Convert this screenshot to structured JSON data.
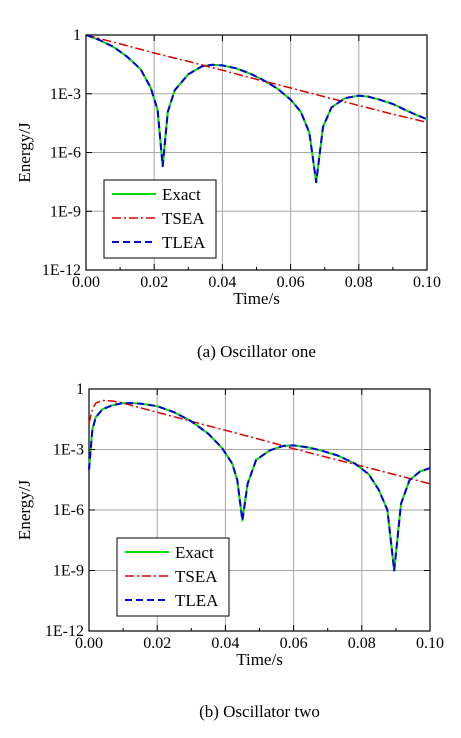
{
  "chart_data": [
    {
      "type": "line",
      "caption": "(a) Oscillator one",
      "xlabel": "Time/s",
      "ylabel": "Energy/J",
      "xlim": [
        0,
        0.1
      ],
      "ylim": [
        1e-12,
        1
      ],
      "yscale": "log",
      "grid": true,
      "legend_position": "bottom-left",
      "x_ticks": [
        0,
        0.02,
        0.04,
        0.06,
        0.08,
        0.1
      ],
      "x_tick_labels": [
        "0.00",
        "0.02",
        "0.04",
        "0.06",
        "0.08",
        "0.10"
      ],
      "y_ticks": [
        1,
        0.001,
        1e-06,
        1e-09,
        1e-12
      ],
      "y_tick_labels": [
        "1",
        "1E-3",
        "1E-6",
        "1E-9",
        "1E-12"
      ],
      "series": [
        {
          "name": "Exact",
          "color": "#00dd00",
          "dash": "solid",
          "x": [
            0,
            0.004,
            0.008,
            0.012,
            0.016,
            0.019,
            0.021,
            0.0225,
            0.024,
            0.026,
            0.03,
            0.034,
            0.037,
            0.04,
            0.044,
            0.048,
            0.052,
            0.056,
            0.06,
            0.063,
            0.0655,
            0.0675,
            0.0695,
            0.072,
            0.076,
            0.08,
            0.083,
            0.086,
            0.09,
            0.094,
            0.097,
            0.1
          ],
          "y": [
            1,
            0.55,
            0.25,
            0.08,
            0.018,
            0.002,
            0.00015,
            2e-07,
            0.00012,
            0.0015,
            0.01,
            0.025,
            0.03,
            0.028,
            0.02,
            0.011,
            0.005,
            0.0019,
            0.0005,
            0.00012,
            1e-05,
            3e-08,
            2e-05,
            0.0002,
            0.0006,
            0.0008,
            0.0007,
            0.0005,
            0.0003,
            0.00014,
            8e-05,
            5e-05
          ]
        },
        {
          "name": "TSEA",
          "color": "#dd0000",
          "dash": "dashdot",
          "x": [
            0,
            0.01,
            0.02,
            0.03,
            0.04,
            0.05,
            0.06,
            0.07,
            0.08,
            0.09,
            0.1
          ],
          "y": [
            1,
            0.35,
            0.12,
            0.045,
            0.016,
            0.0055,
            0.002,
            0.0007,
            0.00025,
            9e-05,
            3.5e-05
          ]
        },
        {
          "name": "TLEA",
          "color": "#0000dd",
          "dash": "dashed",
          "x": [
            0,
            0.004,
            0.008,
            0.012,
            0.016,
            0.019,
            0.021,
            0.0225,
            0.024,
            0.026,
            0.03,
            0.034,
            0.037,
            0.04,
            0.044,
            0.048,
            0.052,
            0.056,
            0.06,
            0.063,
            0.0655,
            0.0675,
            0.0695,
            0.072,
            0.076,
            0.08,
            0.083,
            0.086,
            0.09,
            0.094,
            0.097,
            0.1
          ],
          "y": [
            1,
            0.55,
            0.25,
            0.08,
            0.018,
            0.002,
            0.00015,
            2e-07,
            0.00012,
            0.0015,
            0.01,
            0.025,
            0.03,
            0.028,
            0.02,
            0.011,
            0.005,
            0.0019,
            0.0005,
            0.00012,
            1e-05,
            3e-08,
            2e-05,
            0.0002,
            0.0006,
            0.0008,
            0.0007,
            0.0005,
            0.0003,
            0.00014,
            8e-05,
            5e-05
          ]
        }
      ]
    },
    {
      "type": "line",
      "caption": "(b) Oscillator two",
      "xlabel": "Time/s",
      "ylabel": "Energy/J",
      "xlim": [
        0,
        0.1
      ],
      "ylim": [
        1e-12,
        1
      ],
      "yscale": "log",
      "grid": true,
      "legend_position": "bottom-left",
      "x_ticks": [
        0,
        0.02,
        0.04,
        0.06,
        0.08,
        0.1
      ],
      "x_tick_labels": [
        "0.00",
        "0.02",
        "0.04",
        "0.06",
        "0.08",
        "0.10"
      ],
      "y_ticks": [
        1,
        0.001,
        1e-06,
        1e-09,
        1e-12
      ],
      "y_tick_labels": [
        "1",
        "1E-3",
        "1E-6",
        "1E-9",
        "1E-12"
      ],
      "series": [
        {
          "name": "Exact",
          "color": "#00dd00",
          "dash": "solid",
          "x": [
            0,
            0.001,
            0.002,
            0.004,
            0.007,
            0.01,
            0.013,
            0.016,
            0.02,
            0.025,
            0.03,
            0.035,
            0.039,
            0.042,
            0.0435,
            0.045,
            0.0465,
            0.049,
            0.053,
            0.057,
            0.06,
            0.064,
            0.068,
            0.073,
            0.078,
            0.082,
            0.085,
            0.0875,
            0.0895,
            0.0915,
            0.094,
            0.097,
            0.1
          ],
          "y": [
            0.0001,
            0.01,
            0.04,
            0.1,
            0.16,
            0.2,
            0.2,
            0.18,
            0.14,
            0.07,
            0.025,
            0.006,
            0.0012,
            0.0002,
            3e-05,
            3e-07,
            2e-05,
            0.0003,
            0.0009,
            0.0015,
            0.0016,
            0.0013,
            0.0009,
            0.0005,
            0.0002,
            6e-05,
            1e-05,
            1e-06,
            1e-09,
            2e-06,
            3e-05,
            8e-05,
            0.00012
          ]
        },
        {
          "name": "TSEA",
          "color": "#dd0000",
          "dash": "dashdot",
          "x": [
            0,
            0.001,
            0.002,
            0.004,
            0.007,
            0.01,
            0.02,
            0.03,
            0.04,
            0.05,
            0.06,
            0.07,
            0.08,
            0.09,
            0.1
          ],
          "y": [
            0.02,
            0.1,
            0.2,
            0.27,
            0.25,
            0.2,
            0.07,
            0.025,
            0.009,
            0.0032,
            0.0011,
            0.0004,
            0.00015,
            5.5e-05,
            2e-05
          ]
        },
        {
          "name": "TLEA",
          "color": "#0000dd",
          "dash": "dashed",
          "x": [
            0,
            0.001,
            0.002,
            0.004,
            0.007,
            0.01,
            0.013,
            0.016,
            0.02,
            0.025,
            0.03,
            0.035,
            0.039,
            0.042,
            0.0435,
            0.045,
            0.0465,
            0.049,
            0.053,
            0.057,
            0.06,
            0.064,
            0.068,
            0.073,
            0.078,
            0.082,
            0.085,
            0.0875,
            0.0895,
            0.0915,
            0.094,
            0.097,
            0.1
          ],
          "y": [
            0.0001,
            0.01,
            0.04,
            0.1,
            0.16,
            0.2,
            0.2,
            0.18,
            0.14,
            0.07,
            0.025,
            0.006,
            0.0012,
            0.0002,
            3e-05,
            3e-07,
            2e-05,
            0.0003,
            0.0009,
            0.0015,
            0.0016,
            0.0013,
            0.0009,
            0.0005,
            0.0002,
            6e-05,
            1e-05,
            1e-06,
            1e-09,
            2e-06,
            3e-05,
            8e-05,
            0.00012
          ]
        }
      ]
    }
  ]
}
